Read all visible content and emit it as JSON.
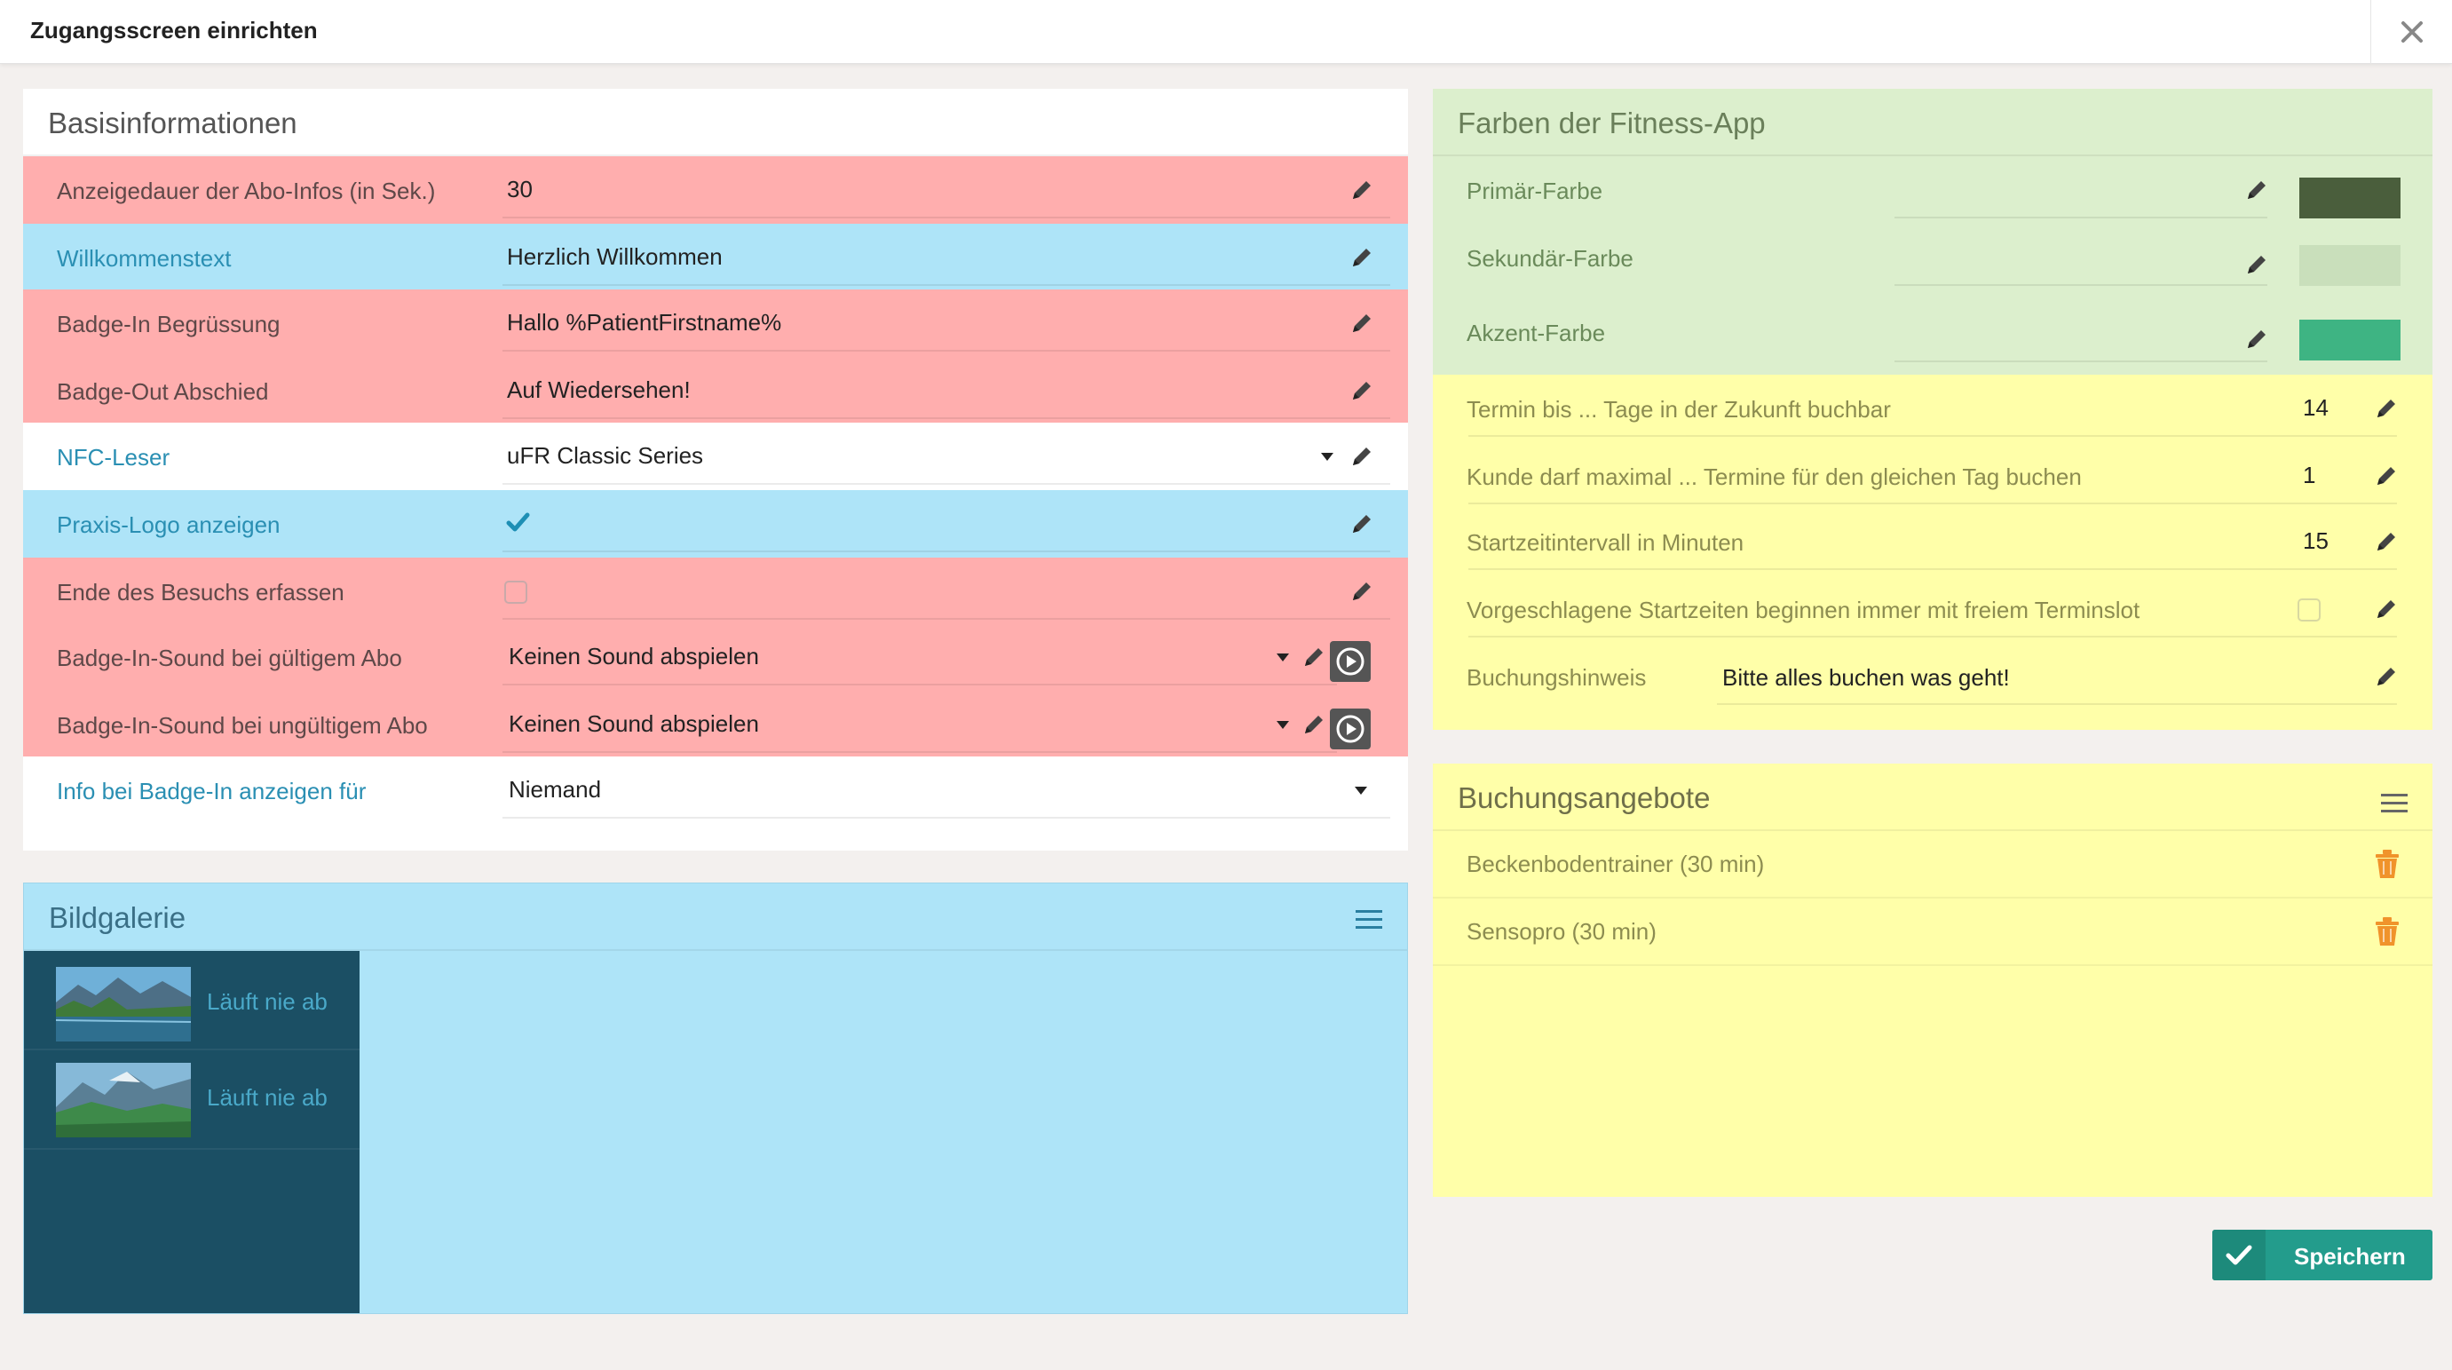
{
  "window": {
    "title": "Zugangsscreen einrichten"
  },
  "basis": {
    "title": "Basisinformationen",
    "rows": [
      {
        "label": "Anzeigedauer der Abo-Infos (in Sek.)",
        "value": "30"
      },
      {
        "label": "Willkommenstext",
        "value": "Herzlich Willkommen"
      },
      {
        "label": "Badge-In Begrüssung",
        "value": "Hallo %PatientFirstname%"
      },
      {
        "label": "Badge-Out Abschied",
        "value": "Auf Wiedersehen!"
      },
      {
        "label": "NFC-Leser",
        "value": "uFR Classic Series"
      },
      {
        "label": "Praxis-Logo anzeigen",
        "checked": true
      },
      {
        "label": "Ende des Besuchs erfassen",
        "checked": false
      },
      {
        "label": "Badge-In-Sound bei gültigem Abo",
        "value": "Keinen Sound abspielen"
      },
      {
        "label": "Badge-In-Sound bei ungültigem Abo",
        "value": "Keinen Sound abspielen"
      },
      {
        "label": "Info bei Badge-In anzeigen für",
        "value": "Niemand"
      }
    ]
  },
  "gallery": {
    "title": "Bildgalerie",
    "items": [
      {
        "label": "Läuft nie ab"
      },
      {
        "label": "Läuft nie ab"
      }
    ]
  },
  "colors": {
    "title": "Farben der Fitness-App",
    "rows": [
      {
        "label": "Primär-Farbe",
        "color": "#4a5e3c"
      },
      {
        "label": "Sekundär-Farbe",
        "color": "#c9dfbb"
      },
      {
        "label": "Akzent-Farbe",
        "color": "#3eb483"
      }
    ]
  },
  "booking_settings": {
    "rows": [
      {
        "label": "Termin bis ... Tage in der Zukunft buchbar",
        "value": "14"
      },
      {
        "label": "Kunde darf maximal ... Termine für den gleichen Tag buchen",
        "value": "1"
      },
      {
        "label": "Startzeitintervall in Minuten",
        "value": "15"
      },
      {
        "label": "Vorgeschlagene Startzeiten beginnen immer mit freiem Terminslot",
        "checked": false
      },
      {
        "label": "Buchungshinweis",
        "value": "Bitte alles buchen was geht!"
      }
    ]
  },
  "offers": {
    "title": "Buchungsangebote",
    "items": [
      {
        "label": "Beckenbodentrainer (30 min)"
      },
      {
        "label": "Sensopro (30 min)"
      }
    ]
  },
  "actions": {
    "save_label": "Speichern"
  },
  "icons": {
    "close": "close-icon",
    "edit": "pencil-icon",
    "dropdown": "chevron-down-icon",
    "play": "play-icon",
    "menu": "hamburger-menu-icon",
    "delete": "trash-icon",
    "check": "checkmark-icon"
  },
  "palette": {
    "red_row": "#ffaeae",
    "blue_row": "#aee4f8",
    "green_section": "#dcefcd",
    "yellow_section": "#ffffa9",
    "gallery_dark": "#1b4f64",
    "save_button": "#239c8c",
    "trash": "#f0932b"
  }
}
